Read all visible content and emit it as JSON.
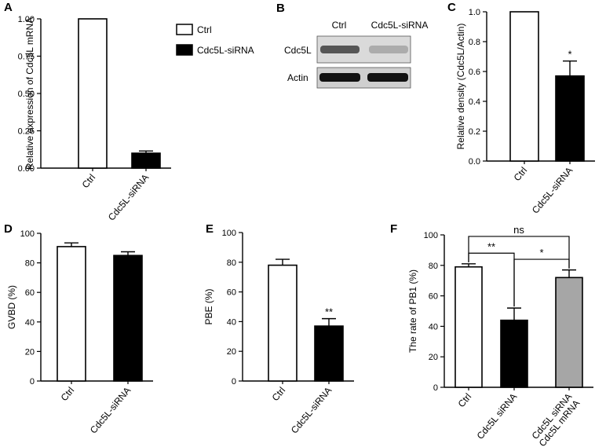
{
  "colors": {
    "ctrl": "#ffffff",
    "sirna": "#000000",
    "rescue": "#a6a6a6",
    "stroke": "#000000"
  },
  "legend": {
    "ctrl": "Ctrl",
    "sirna": "Cdc5L-siRNA"
  },
  "blot": {
    "letter": "B",
    "lanes": [
      "Ctrl",
      "Cdc5L-siRNA"
    ],
    "rows": [
      "Cdc5L",
      "Actin"
    ]
  },
  "chart_data": [
    {
      "letter": "A",
      "type": "bar",
      "ylabel": "Relative expression of Cdc5L mRNA",
      "ylim": [
        0,
        1
      ],
      "yticks": [
        "0.00",
        "0.25",
        "0.50",
        "0.75",
        "1.00"
      ],
      "categories": [
        "Ctrl",
        "Cdc5L-siRNA"
      ],
      "values": [
        1.0,
        0.1
      ],
      "errors": [
        0,
        0.015
      ],
      "colors": [
        "ctrl",
        "sirna"
      ],
      "significance": []
    },
    {
      "letter": "C",
      "type": "bar",
      "ylabel": "Relative density (Cdc5L/Actin)",
      "ylim": [
        0,
        1
      ],
      "yticks": [
        "0.0",
        "0.2",
        "0.4",
        "0.6",
        "0.8",
        "1.0"
      ],
      "categories": [
        "Ctrl",
        "Cdc5L-siRNA"
      ],
      "values": [
        1.0,
        0.57
      ],
      "errors": [
        0,
        0.1
      ],
      "colors": [
        "ctrl",
        "sirna"
      ],
      "significance": [
        {
          "bar": 1,
          "label": "*"
        }
      ]
    },
    {
      "letter": "D",
      "type": "bar",
      "ylabel": "GVBD (%)",
      "ylim": [
        0,
        100
      ],
      "yticks": [
        "0",
        "20",
        "40",
        "60",
        "80",
        "100"
      ],
      "categories": [
        "Ctrl",
        "Cdc5L-siRNA"
      ],
      "values": [
        91,
        85
      ],
      "errors": [
        2.5,
        2.5
      ],
      "colors": [
        "ctrl",
        "sirna"
      ],
      "significance": []
    },
    {
      "letter": "E",
      "type": "bar",
      "ylabel": "PBE (%)",
      "ylim": [
        0,
        100
      ],
      "yticks": [
        "0",
        "20",
        "40",
        "60",
        "80",
        "100"
      ],
      "categories": [
        "Ctrl",
        "Cdc5L-siRNA"
      ],
      "values": [
        78,
        37
      ],
      "errors": [
        4,
        5
      ],
      "colors": [
        "ctrl",
        "sirna"
      ],
      "significance": [
        {
          "bar": 1,
          "label": "**"
        }
      ]
    },
    {
      "letter": "F",
      "type": "bar",
      "ylabel": "The rate of PB1 (%)",
      "ylim": [
        0,
        100
      ],
      "yticks": [
        "0",
        "20",
        "40",
        "60",
        "80",
        "100"
      ],
      "categories": [
        "Ctrl",
        "Cdc5L siRNA",
        [
          "Cdc5L siRNA",
          "+ Cdc5L mRNA"
        ]
      ],
      "values": [
        79,
        44,
        72
      ],
      "errors": [
        2,
        8,
        5
      ],
      "colors": [
        "ctrl",
        "sirna",
        "rescue"
      ],
      "brackets": [
        {
          "from": 0,
          "to": 1,
          "label": "**"
        },
        {
          "from": 1,
          "to": 2,
          "label": "*"
        },
        {
          "from": 0,
          "to": 2,
          "label": "ns"
        }
      ]
    }
  ]
}
